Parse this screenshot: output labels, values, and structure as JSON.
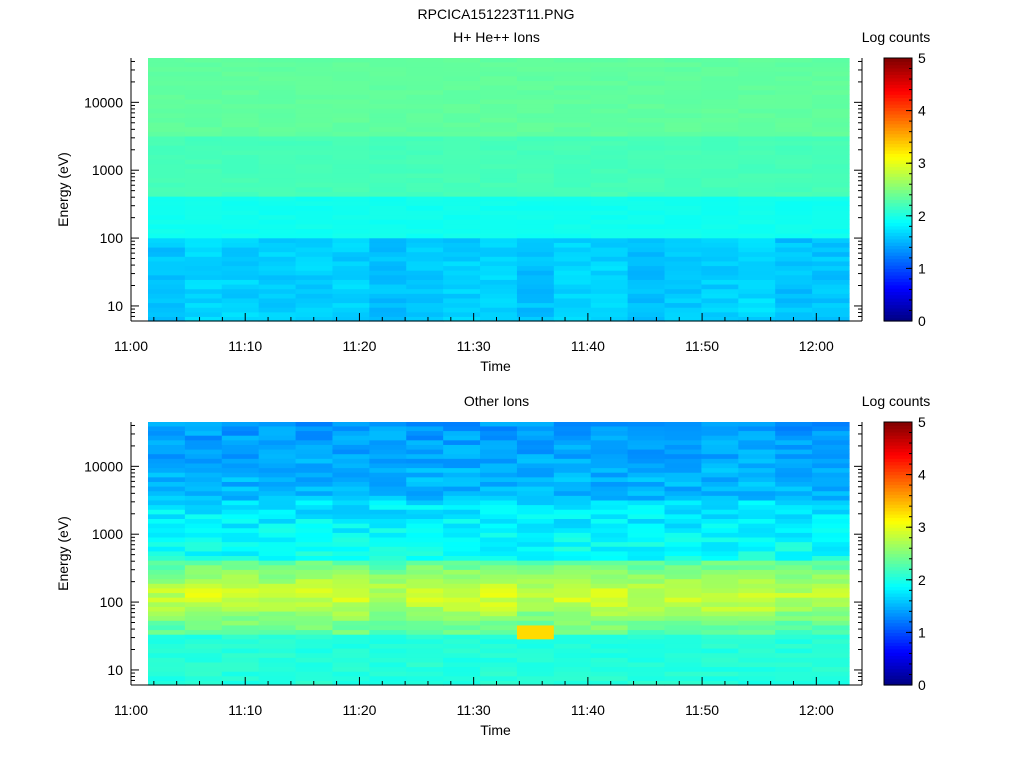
{
  "figure_title": "RPCICA151223T11.PNG",
  "chart_data": [
    {
      "type": "heatmap",
      "title": "H+ He++ Ions",
      "xlabel": "Time",
      "ylabel": "Energy (eV)",
      "y_scale": "log",
      "ylim": [
        6,
        45000
      ],
      "x_ticks": [
        "11:00",
        "11:10",
        "11:20",
        "11:30",
        "11:40",
        "11:50",
        "12:00"
      ],
      "y_ticks": [
        "10",
        "100",
        "1000",
        "10000"
      ],
      "colorbar": {
        "label": "Log counts",
        "range": [
          0,
          5
        ],
        "ticks": [
          "0",
          "1",
          "2",
          "3",
          "4",
          "5"
        ]
      },
      "pattern": "protons"
    },
    {
      "type": "heatmap",
      "title": "Other Ions",
      "xlabel": "Time",
      "ylabel": "Energy (eV)",
      "y_scale": "log",
      "ylim": [
        6,
        45000
      ],
      "x_ticks": [
        "11:00",
        "11:10",
        "11:20",
        "11:30",
        "11:40",
        "11:50",
        "12:00"
      ],
      "y_ticks": [
        "10",
        "100",
        "1000",
        "10000"
      ],
      "colorbar": {
        "label": "Log counts",
        "range": [
          0,
          5
        ],
        "ticks": [
          "0",
          "1",
          "2",
          "3",
          "4",
          "5"
        ]
      },
      "pattern": "heavy"
    }
  ]
}
